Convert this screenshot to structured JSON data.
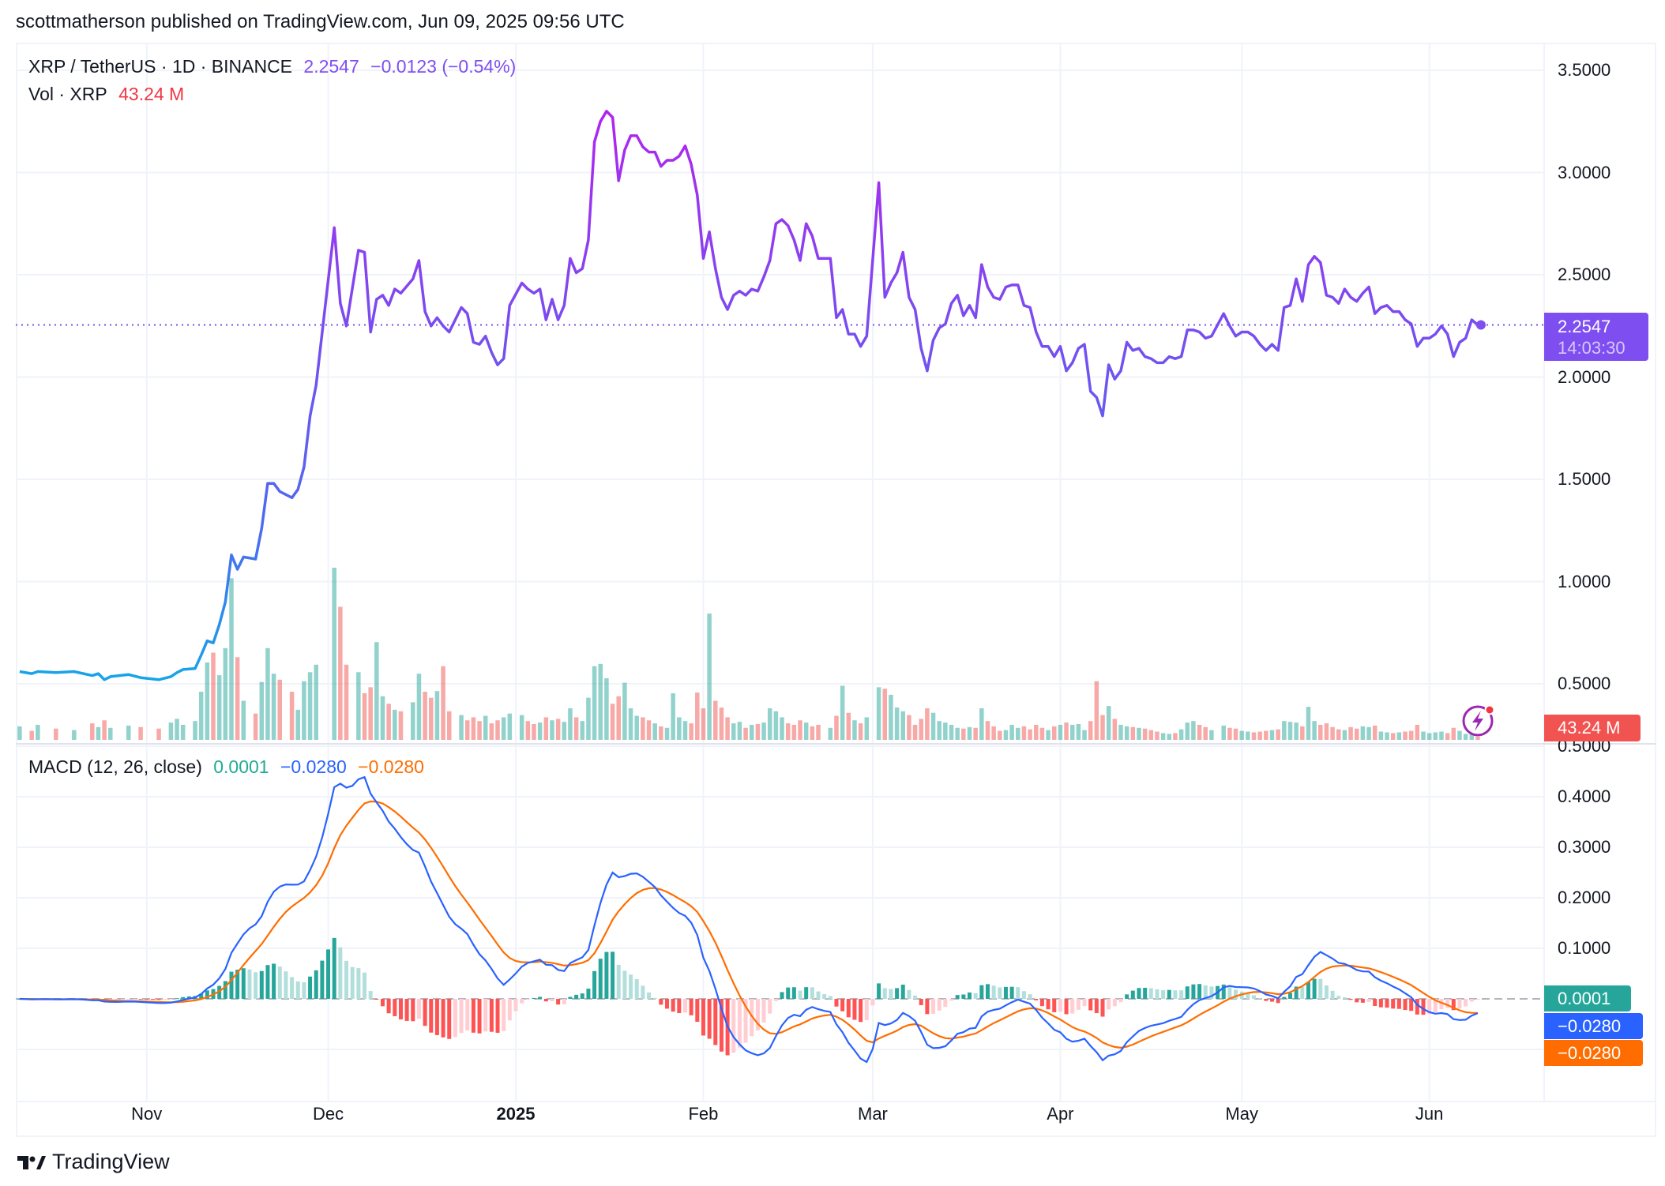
{
  "header": {
    "published": "scottmatherson published on TradingView.com, Jun 09, 2025 09:56 UTC"
  },
  "legend": {
    "symbol": "XRP / TetherUS · 1D · BINANCE",
    "last": "2.2547",
    "change": "−0.0123 (−0.54%)",
    "vol_label": "Vol · XRP",
    "vol_value": "43.24 M"
  },
  "macd_legend": {
    "label": "MACD (12, 26, close)",
    "hist": "0.0001",
    "macd": "−0.0280",
    "signal": "−0.0280"
  },
  "tags": {
    "price": "2.2547",
    "countdown": "14:03:30",
    "volume": "43.24 M",
    "hist": "0.0001",
    "macd": "−0.0280",
    "signal": "−0.0280"
  },
  "footer": {
    "brand": "TradingView"
  },
  "colors": {
    "line_low": "#15a6e8",
    "line_mid": "#5a62f0",
    "line_high": "#b81ff0",
    "line_right": "#7e4ef0",
    "vol_up": "rgba(38,166,154,0.5)",
    "vol_down": "rgba(239,83,80,0.5)",
    "macd": "#2962ff",
    "signal": "#ff6d00",
    "hist_up_strong": "#26a69a",
    "hist_up_weak": "#b2dfdb",
    "hist_down_strong": "#ff5252",
    "hist_down_weak": "#ffcdd2",
    "price_tag": "#7e4ef0",
    "volume_tag": "#f05350",
    "grid": "#f0f3fa"
  },
  "chart_data": [
    {
      "type": "line",
      "pane": "price",
      "title": "XRP / TetherUS · 1D · BINANCE",
      "ylim": [
        0.3,
        3.65
      ],
      "y_ticks": [
        "3.5000",
        "3.0000",
        "2.5000",
        "2.0000",
        "1.5000",
        "1.0000",
        "0.5000"
      ],
      "x_ticks": [
        {
          "label": "Nov",
          "date": "2024-11-01"
        },
        {
          "label": "Dec",
          "date": "2024-12-01"
        },
        {
          "label": "2025",
          "date": "2025-01-01",
          "bold": true
        },
        {
          "label": "Feb",
          "date": "2025-02-01"
        },
        {
          "label": "Mar",
          "date": "2025-03-01"
        },
        {
          "label": "Apr",
          "date": "2025-04-01"
        },
        {
          "label": "May",
          "date": "2025-05-01"
        },
        {
          "label": "Jun",
          "date": "2025-06-01"
        }
      ],
      "grid": true,
      "last_price": 2.2547,
      "points_columns": [
        "date",
        "close",
        "volume_M"
      ],
      "points": [
        [
          "2024-10-11",
          0.56,
          180
        ],
        [
          "2024-10-13",
          0.55,
          120
        ],
        [
          "2024-10-14",
          0.56,
          200
        ],
        [
          "2024-10-17",
          0.555,
          150
        ],
        [
          "2024-10-20",
          0.56,
          130
        ],
        [
          "2024-10-23",
          0.54,
          220
        ],
        [
          "2024-10-24",
          0.55,
          170
        ],
        [
          "2024-10-25",
          0.52,
          260
        ],
        [
          "2024-10-26",
          0.535,
          160
        ],
        [
          "2024-10-29",
          0.545,
          190
        ],
        [
          "2024-10-31",
          0.53,
          170
        ],
        [
          "2024-11-03",
          0.52,
          150
        ],
        [
          "2024-11-05",
          0.535,
          230
        ],
        [
          "2024-11-06",
          0.555,
          280
        ],
        [
          "2024-11-07",
          0.57,
          200
        ],
        [
          "2024-11-09",
          0.575,
          250
        ],
        [
          "2024-11-10",
          0.64,
          640
        ],
        [
          "2024-11-11",
          0.71,
          1030
        ],
        [
          "2024-11-12",
          0.7,
          1160
        ],
        [
          "2024-11-13",
          0.79,
          860
        ],
        [
          "2024-11-14",
          0.9,
          1220
        ],
        [
          "2024-11-15",
          1.13,
          2150
        ],
        [
          "2024-11-16",
          1.06,
          1100
        ],
        [
          "2024-11-17",
          1.12,
          520
        ],
        [
          "2024-11-19",
          1.11,
          350
        ],
        [
          "2024-11-20",
          1.26,
          770
        ],
        [
          "2024-11-21",
          1.48,
          1220
        ],
        [
          "2024-11-22",
          1.48,
          880
        ],
        [
          "2024-11-23",
          1.44,
          800
        ],
        [
          "2024-11-25",
          1.41,
          640
        ],
        [
          "2024-11-26",
          1.45,
          400
        ],
        [
          "2024-11-27",
          1.56,
          780
        ],
        [
          "2024-11-28",
          1.81,
          900
        ],
        [
          "2024-11-29",
          1.96,
          1000
        ],
        [
          "2024-12-02",
          2.73,
          2290
        ],
        [
          "2024-12-03",
          2.36,
          1770
        ],
        [
          "2024-12-04",
          2.25,
          1000
        ],
        [
          "2024-12-06",
          2.62,
          900
        ],
        [
          "2024-12-07",
          2.61,
          620
        ],
        [
          "2024-12-08",
          2.22,
          700
        ],
        [
          "2024-12-09",
          2.38,
          1300
        ],
        [
          "2024-12-10",
          2.4,
          580
        ],
        [
          "2024-12-11",
          2.35,
          480
        ],
        [
          "2024-12-12",
          2.43,
          400
        ],
        [
          "2024-12-13",
          2.41,
          380
        ],
        [
          "2024-12-15",
          2.48,
          500
        ],
        [
          "2024-12-16",
          2.57,
          880
        ],
        [
          "2024-12-17",
          2.32,
          640
        ],
        [
          "2024-12-18",
          2.25,
          560
        ],
        [
          "2024-12-19",
          2.29,
          650
        ],
        [
          "2024-12-20",
          2.25,
          980
        ],
        [
          "2024-12-21",
          2.22,
          380
        ],
        [
          "2024-12-23",
          2.34,
          330
        ],
        [
          "2024-12-24",
          2.31,
          260
        ],
        [
          "2024-12-25",
          2.17,
          300
        ],
        [
          "2024-12-26",
          2.16,
          250
        ],
        [
          "2024-12-27",
          2.2,
          320
        ],
        [
          "2024-12-28",
          2.12,
          220
        ],
        [
          "2024-12-29",
          2.06,
          260
        ],
        [
          "2024-12-30",
          2.09,
          300
        ],
        [
          "2024-12-31",
          2.35,
          350
        ],
        [
          "2025-01-02",
          2.46,
          330
        ],
        [
          "2025-01-03",
          2.43,
          250
        ],
        [
          "2025-01-04",
          2.41,
          210
        ],
        [
          "2025-01-05",
          2.43,
          230
        ],
        [
          "2025-01-06",
          2.28,
          300
        ],
        [
          "2025-01-07",
          2.38,
          260
        ],
        [
          "2025-01-08",
          2.28,
          280
        ],
        [
          "2025-01-09",
          2.35,
          240
        ],
        [
          "2025-01-10",
          2.58,
          420
        ],
        [
          "2025-01-11",
          2.51,
          300
        ],
        [
          "2025-01-12",
          2.53,
          250
        ],
        [
          "2025-01-13",
          2.67,
          560
        ],
        [
          "2025-01-14",
          3.15,
          980
        ],
        [
          "2025-01-15",
          3.25,
          1010
        ],
        [
          "2025-01-16",
          3.3,
          820
        ],
        [
          "2025-01-17",
          3.27,
          480
        ],
        [
          "2025-01-18",
          2.96,
          580
        ],
        [
          "2025-01-19",
          3.11,
          760
        ],
        [
          "2025-01-20",
          3.18,
          420
        ],
        [
          "2025-01-21",
          3.18,
          320
        ],
        [
          "2025-01-22",
          3.125,
          300
        ],
        [
          "2025-01-23",
          3.1,
          260
        ],
        [
          "2025-01-24",
          3.1,
          220
        ],
        [
          "2025-01-25",
          3.03,
          180
        ],
        [
          "2025-01-26",
          3.06,
          160
        ],
        [
          "2025-01-27",
          3.06,
          620
        ],
        [
          "2025-01-28",
          3.08,
          300
        ],
        [
          "2025-01-29",
          3.13,
          250
        ],
        [
          "2025-01-30",
          3.04,
          220
        ],
        [
          "2025-01-31",
          2.89,
          630
        ],
        [
          "2025-02-01",
          2.58,
          420
        ],
        [
          "2025-02-02",
          2.71,
          1680
        ],
        [
          "2025-02-03",
          2.53,
          520
        ],
        [
          "2025-02-04",
          2.39,
          430
        ],
        [
          "2025-02-05",
          2.33,
          300
        ],
        [
          "2025-02-06",
          2.4,
          220
        ],
        [
          "2025-02-07",
          2.42,
          240
        ],
        [
          "2025-02-08",
          2.4,
          160
        ],
        [
          "2025-02-09",
          2.43,
          200
        ],
        [
          "2025-02-10",
          2.42,
          210
        ],
        [
          "2025-02-11",
          2.49,
          230
        ],
        [
          "2025-02-12",
          2.57,
          420
        ],
        [
          "2025-02-13",
          2.75,
          380
        ],
        [
          "2025-02-14",
          2.77,
          300
        ],
        [
          "2025-02-15",
          2.74,
          220
        ],
        [
          "2025-02-16",
          2.67,
          200
        ],
        [
          "2025-02-17",
          2.57,
          260
        ],
        [
          "2025-02-18",
          2.75,
          230
        ],
        [
          "2025-02-19",
          2.69,
          180
        ],
        [
          "2025-02-20",
          2.58,
          200
        ],
        [
          "2025-02-22",
          2.58,
          160
        ],
        [
          "2025-02-23",
          2.29,
          320
        ],
        [
          "2025-02-24",
          2.33,
          720
        ],
        [
          "2025-02-25",
          2.21,
          360
        ],
        [
          "2025-02-26",
          2.21,
          260
        ],
        [
          "2025-02-27",
          2.15,
          220
        ],
        [
          "2025-02-28",
          2.2,
          300
        ],
        [
          "2025-03-02",
          2.95,
          700
        ],
        [
          "2025-03-03",
          2.39,
          680
        ],
        [
          "2025-03-04",
          2.46,
          600
        ],
        [
          "2025-03-05",
          2.51,
          430
        ],
        [
          "2025-03-06",
          2.61,
          380
        ],
        [
          "2025-03-07",
          2.39,
          330
        ],
        [
          "2025-03-08",
          2.33,
          200
        ],
        [
          "2025-03-09",
          2.14,
          280
        ],
        [
          "2025-03-10",
          2.03,
          420
        ],
        [
          "2025-03-11",
          2.18,
          360
        ],
        [
          "2025-03-12",
          2.24,
          250
        ],
        [
          "2025-03-13",
          2.26,
          230
        ],
        [
          "2025-03-14",
          2.36,
          200
        ],
        [
          "2025-03-15",
          2.4,
          160
        ],
        [
          "2025-03-16",
          2.3,
          150
        ],
        [
          "2025-03-17",
          2.35,
          170
        ],
        [
          "2025-03-18",
          2.29,
          160
        ],
        [
          "2025-03-19",
          2.55,
          420
        ],
        [
          "2025-03-20",
          2.44,
          250
        ],
        [
          "2025-03-21",
          2.39,
          180
        ],
        [
          "2025-03-22",
          2.38,
          120
        ],
        [
          "2025-03-23",
          2.44,
          130
        ],
        [
          "2025-03-24",
          2.45,
          200
        ],
        [
          "2025-03-25",
          2.45,
          160
        ],
        [
          "2025-03-26",
          2.35,
          180
        ],
        [
          "2025-03-27",
          2.34,
          140
        ],
        [
          "2025-03-28",
          2.22,
          200
        ],
        [
          "2025-03-29",
          2.15,
          160
        ],
        [
          "2025-03-30",
          2.15,
          130
        ],
        [
          "2025-03-31",
          2.1,
          180
        ],
        [
          "2025-04-01",
          2.15,
          200
        ],
        [
          "2025-04-02",
          2.03,
          230
        ],
        [
          "2025-04-03",
          2.07,
          200
        ],
        [
          "2025-04-04",
          2.14,
          210
        ],
        [
          "2025-04-05",
          2.16,
          130
        ],
        [
          "2025-04-06",
          1.93,
          250
        ],
        [
          "2025-04-07",
          1.9,
          780
        ],
        [
          "2025-04-08",
          1.81,
          330
        ],
        [
          "2025-04-09",
          2.06,
          450
        ],
        [
          "2025-04-10",
          1.99,
          280
        ],
        [
          "2025-04-11",
          2.03,
          200
        ],
        [
          "2025-04-12",
          2.17,
          180
        ],
        [
          "2025-04-13",
          2.13,
          170
        ],
        [
          "2025-04-14",
          2.14,
          160
        ],
        [
          "2025-04-15",
          2.1,
          150
        ],
        [
          "2025-04-16",
          2.09,
          130
        ],
        [
          "2025-04-17",
          2.07,
          110
        ],
        [
          "2025-04-18",
          2.07,
          90
        ],
        [
          "2025-04-19",
          2.1,
          80
        ],
        [
          "2025-04-20",
          2.09,
          90
        ],
        [
          "2025-04-21",
          2.1,
          140
        ],
        [
          "2025-04-22",
          2.23,
          230
        ],
        [
          "2025-04-23",
          2.23,
          250
        ],
        [
          "2025-04-24",
          2.22,
          200
        ],
        [
          "2025-04-25",
          2.19,
          170
        ],
        [
          "2025-04-26",
          2.2,
          130
        ],
        [
          "2025-04-28",
          2.31,
          190
        ],
        [
          "2025-04-29",
          2.25,
          160
        ],
        [
          "2025-04-30",
          2.2,
          150
        ],
        [
          "2025-05-01",
          2.22,
          120
        ],
        [
          "2025-05-02",
          2.22,
          110
        ],
        [
          "2025-05-03",
          2.2,
          100
        ],
        [
          "2025-05-04",
          2.16,
          110
        ],
        [
          "2025-05-05",
          2.13,
          120
        ],
        [
          "2025-05-06",
          2.16,
          130
        ],
        [
          "2025-05-07",
          2.13,
          140
        ],
        [
          "2025-05-08",
          2.34,
          250
        ],
        [
          "2025-05-09",
          2.35,
          240
        ],
        [
          "2025-05-10",
          2.48,
          230
        ],
        [
          "2025-05-11",
          2.37,
          180
        ],
        [
          "2025-05-12",
          2.55,
          440
        ],
        [
          "2025-05-13",
          2.59,
          250
        ],
        [
          "2025-05-14",
          2.56,
          200
        ],
        [
          "2025-05-15",
          2.4,
          220
        ],
        [
          "2025-05-16",
          2.39,
          170
        ],
        [
          "2025-05-17",
          2.36,
          140
        ],
        [
          "2025-05-18",
          2.43,
          130
        ],
        [
          "2025-05-19",
          2.39,
          170
        ],
        [
          "2025-05-20",
          2.37,
          150
        ],
        [
          "2025-05-21",
          2.41,
          180
        ],
        [
          "2025-05-22",
          2.44,
          170
        ],
        [
          "2025-05-23",
          2.31,
          190
        ],
        [
          "2025-05-24",
          2.34,
          110
        ],
        [
          "2025-05-25",
          2.35,
          100
        ],
        [
          "2025-05-26",
          2.32,
          90
        ],
        [
          "2025-05-27",
          2.32,
          100
        ],
        [
          "2025-05-28",
          2.28,
          110
        ],
        [
          "2025-05-29",
          2.26,
          120
        ],
        [
          "2025-05-30",
          2.15,
          200
        ],
        [
          "2025-05-31",
          2.19,
          110
        ],
        [
          "2025-06-01",
          2.19,
          90
        ],
        [
          "2025-06-02",
          2.21,
          100
        ],
        [
          "2025-06-03",
          2.25,
          110
        ],
        [
          "2025-06-04",
          2.21,
          90
        ],
        [
          "2025-06-05",
          2.1,
          160
        ],
        [
          "2025-06-06",
          2.17,
          120
        ],
        [
          "2025-06-07",
          2.19,
          80
        ],
        [
          "2025-06-08",
          2.28,
          90
        ],
        [
          "2025-06-09",
          2.2547,
          43.24
        ]
      ]
    },
    {
      "type": "line",
      "pane": "macd",
      "title": "MACD (12, 26, close)",
      "fast": 12,
      "slow": 26,
      "source": "close",
      "ylim": [
        -0.2,
        0.5
      ],
      "y_ticks": [
        "0.5000",
        "0.4000",
        "0.3000",
        "0.2000",
        "0.1000"
      ],
      "last": {
        "hist": 0.0001,
        "macd": -0.028,
        "signal": -0.028
      },
      "grid": true
    }
  ]
}
